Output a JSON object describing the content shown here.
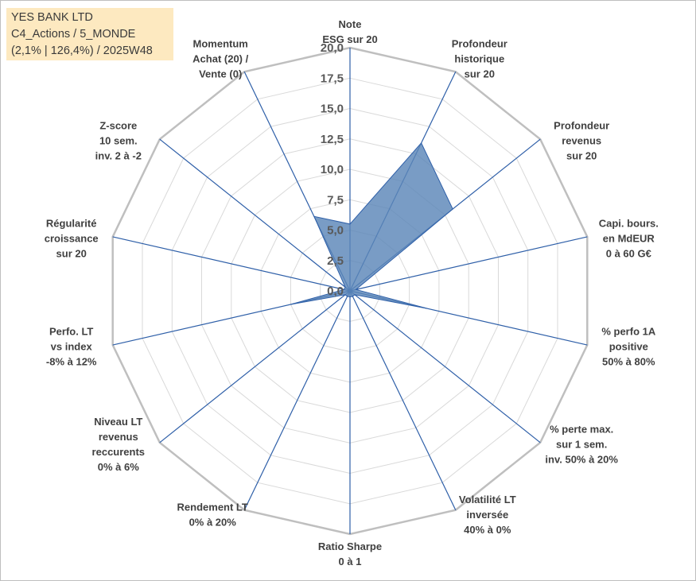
{
  "header": {
    "line1": "YES BANK LTD",
    "line2": "C4_Actions / 5_MONDE",
    "line3": "(2,1% | 126,4%) / 2025W48"
  },
  "colors": {
    "grid_outer": "#bfbfbf",
    "grid_inner": "#d9d9d9",
    "spoke": "#2e5fa8",
    "fill": "#5b86b8",
    "fill_stroke": "#2e5fa8",
    "tick_text": "#595959",
    "label_text": "#404040",
    "title_bg": "#fde9c0"
  },
  "chart_data": {
    "type": "radar",
    "title": "YES BANK LTD",
    "rmin": 0,
    "rmax": 20,
    "ring_step": 2.5,
    "ticks": [
      "0,0",
      "2,5",
      "5,0",
      "7,5",
      "10,0",
      "12,5",
      "15,0",
      "17,5",
      "20,0"
    ],
    "axes": [
      {
        "label": [
          "Note",
          "ESG sur 20"
        ],
        "value": 5.5
      },
      {
        "label": [
          "Profondeur",
          "historique",
          "sur 20"
        ],
        "value": 13.5
      },
      {
        "label": [
          "Profondeur",
          "revenus",
          "sur 20"
        ],
        "value": 10.8
      },
      {
        "label": [
          "Capi. bours.",
          "en MdEUR",
          "0 à 60 G€"
        ],
        "value": 0.5
      },
      {
        "label": [
          "% perfo 1A",
          "positive",
          "50% à 80%"
        ],
        "value": 6.5
      },
      {
        "label": [
          "% perte max.",
          "sur 1 sem.",
          "inv. 50% à 20%"
        ],
        "value": 0.5
      },
      {
        "label": [
          "Volatilité LT",
          "inversée",
          "40% à 0%"
        ],
        "value": 0.5
      },
      {
        "label": [
          "Ratio Sharpe",
          "0 à 1"
        ],
        "value": 0.5
      },
      {
        "label": [
          "Rendement LT",
          "0% à 20%"
        ],
        "value": 0.5
      },
      {
        "label": [
          "Niveau LT",
          "revenus",
          "reccurents",
          "0% à 6%"
        ],
        "value": 0.5
      },
      {
        "label": [
          "Perfo. LT",
          "vs index",
          "-8% à 12%"
        ],
        "value": 5.0
      },
      {
        "label": [
          "Régularité",
          "croissance",
          "sur 20"
        ],
        "value": 0.5
      },
      {
        "label": [
          "Z-score",
          "10 sem.",
          "inv. 2 à -2"
        ],
        "value": 0.5
      },
      {
        "label": [
          "Momentum",
          "Achat (20) /",
          "Vente (0)"
        ],
        "value": 6.8
      }
    ]
  }
}
